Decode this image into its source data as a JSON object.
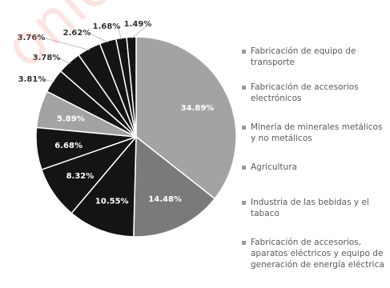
{
  "chart_data": {
    "type": "pie",
    "title": "",
    "categories": [
      "Fabricación de equipo de transporte",
      "Fabricación de accesorios electrónicos",
      "",
      "",
      "",
      "",
      "",
      "",
      "",
      "",
      "",
      ""
    ],
    "values": [
      34.89,
      14.48,
      10.55,
      8.32,
      6.68,
      5.89,
      3.81,
      3.78,
      3.76,
      2.62,
      1.68,
      1.49
    ],
    "labels": [
      "34.89%",
      "14.48%",
      "10.55%",
      "8.32%",
      "6.68%",
      "5.89%",
      "3.81%",
      "3.78%",
      "3.76%",
      "2.62%",
      "1.68%",
      "1.49%"
    ],
    "colors": [
      "#a3a3a3",
      "#7a7a7a",
      "#141414",
      "#141414",
      "#141414",
      "#a3a3a3",
      "#141414",
      "#141414",
      "#141414",
      "#141414",
      "#141414",
      "#141414"
    ],
    "legend_position": "right",
    "legend": [
      "Fabricación de equipo de transporte",
      "Fabricación de accesorios electrónicos",
      "Minería de minerales metálicos y no metálicos",
      "Agricultura",
      "Industria de las bebidas y el tabaco",
      "Fabricación de accesorios, aparatos eléctricos y equipo de generación de energía eléctrica"
    ]
  }
}
